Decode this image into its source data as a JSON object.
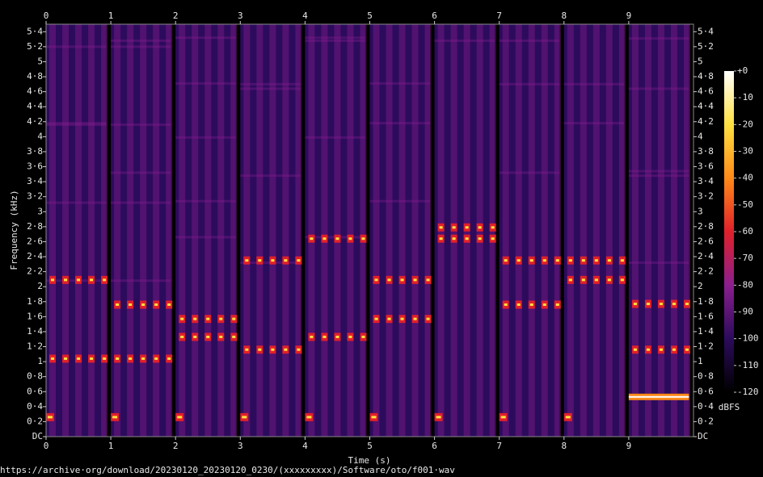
{
  "chart_data": {
    "type": "spectrogram",
    "x_label": "Time (s)",
    "y_label": "Frequency (kHz)",
    "footer": "https://archive·org/download/20230120_20230120_0230/(xxxxxxxxx)/Software/oto/f001·wav",
    "xlim": [
      0,
      10
    ],
    "xticks": [
      0,
      1,
      2,
      3,
      4,
      5,
      6,
      7,
      8,
      9
    ],
    "ylim": [
      0,
      5.5
    ],
    "yticks": [
      {
        "value": 0,
        "label": "DC"
      },
      {
        "value": 0.2,
        "label": "0·2"
      },
      {
        "value": 0.4,
        "label": "0·4"
      },
      {
        "value": 0.6,
        "label": "0·6"
      },
      {
        "value": 0.8,
        "label": "0·8"
      },
      1,
      {
        "value": 1.2,
        "label": "1·2"
      },
      {
        "value": 1.4,
        "label": "1·4"
      },
      {
        "value": 1.6,
        "label": "1·6"
      },
      {
        "value": 1.8,
        "label": "1·8"
      },
      2,
      {
        "value": 2.2,
        "label": "2·2"
      },
      {
        "value": 2.4,
        "label": "2·4"
      },
      {
        "value": 2.6,
        "label": "2·6"
      },
      {
        "value": 2.8,
        "label": "2·8"
      },
      3,
      {
        "value": 3.2,
        "label": "3·2"
      },
      {
        "value": 3.4,
        "label": "3·4"
      },
      {
        "value": 3.6,
        "label": "3·6"
      },
      {
        "value": 3.8,
        "label": "3·8"
      },
      4,
      {
        "value": 4.2,
        "label": "4·2"
      },
      {
        "value": 4.4,
        "label": "4·4"
      },
      {
        "value": 4.6,
        "label": "4·6"
      },
      {
        "value": 4.8,
        "label": "4·8"
      },
      5,
      {
        "value": 5.2,
        "label": "5·2"
      },
      {
        "value": 5.4,
        "label": "5·4"
      }
    ],
    "colormap": [
      "#000000",
      "#2c0b5c",
      "#8a1e8e",
      "#e0202a",
      "#ff8a18",
      "#ffe040",
      "#ffffff"
    ],
    "colorbar": {
      "label": "dBFS",
      "lim": [
        -120,
        0
      ],
      "ticks": [
        {
          "value": 0,
          "label": "+0"
        },
        -10,
        -20,
        -30,
        -40,
        -50,
        -60,
        -70,
        -80,
        -90,
        -100,
        -110,
        -120
      ]
    },
    "segment_length": 0.93,
    "pulse_offsets": [
      0.05,
      0.25,
      0.45,
      0.65,
      0.85
    ],
    "pulse_length": 0.1,
    "segments": [
      {
        "start": 0,
        "blip": 0.26,
        "freqs": [
          1.04,
          2.09
        ]
      },
      {
        "start": 1,
        "blip": 0.26,
        "freqs": [
          1.04,
          1.76
        ]
      },
      {
        "start": 2,
        "blip": 0.26,
        "freqs": [
          1.33,
          1.57
        ]
      },
      {
        "start": 3,
        "blip": 0.26,
        "freqs": [
          1.16,
          2.35
        ]
      },
      {
        "start": 4,
        "blip": 0.26,
        "freqs": [
          1.33,
          2.64
        ]
      },
      {
        "start": 5,
        "blip": 0.26,
        "freqs": [
          1.57,
          2.09
        ]
      },
      {
        "start": 6,
        "blip": 0.26,
        "freqs": [
          2.64,
          2.79
        ]
      },
      {
        "start": 7,
        "blip": 0.26,
        "freqs": [
          1.76,
          2.35
        ]
      },
      {
        "start": 8,
        "blip": 0.26,
        "freqs": [
          2.09,
          2.35
        ]
      },
      {
        "start": 9,
        "steady": 0.53,
        "freqs": [
          1.16,
          1.77
        ]
      }
    ]
  }
}
